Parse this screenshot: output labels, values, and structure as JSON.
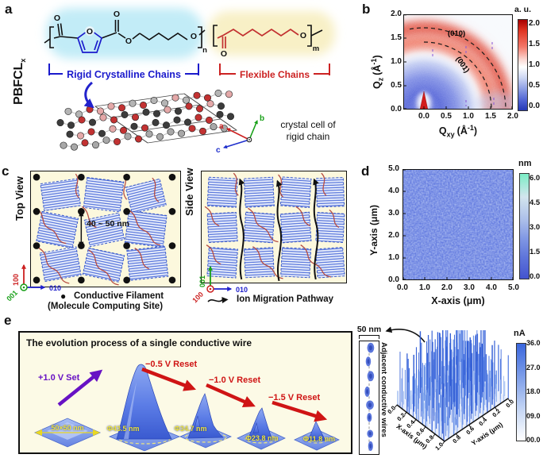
{
  "panels": {
    "a": {
      "label": "a",
      "polymer_name": "PBFCL",
      "polymer_sub": "x",
      "atom_o": "O",
      "sub_n": "n",
      "sub_m": "m",
      "rigid_label": "Rigid Crystalline Chains",
      "flexible_label": "Flexible Chains",
      "crystal_caption_1": "crystal cell of",
      "crystal_caption_2": "rigid chain",
      "axis_a": "a",
      "axis_b": "b",
      "axis_c": "c"
    },
    "b": {
      "label": "b",
      "ylabel_base": "Q",
      "ylabel_sub": "z",
      "xlabel_base": "Q",
      "xlabel_sub": "xy",
      "unit_open": "(Å",
      "unit_sup": "-1",
      "unit_close": ")",
      "y_ticks": [
        "2.0",
        "1.5",
        "1.0",
        "0.5",
        "0.0"
      ],
      "x_ticks": [
        "0.0",
        "0.5",
        "1.0",
        "1.5",
        "2.0"
      ],
      "colorbar_title": "a. u.",
      "colorbar_ticks": [
        "2.0",
        "1.5",
        "1.0",
        "0.5",
        "0.0"
      ],
      "ring_outer": "(010)",
      "ring_inner": "(001)"
    },
    "c": {
      "label": "c",
      "top_view": "Top View",
      "side_view": "Side View",
      "spacing": "40 ~ 50 nm",
      "dir_100": "100",
      "dir_010": "010",
      "dir_001": "001",
      "legend_dot": "●",
      "legend_filament_1": "Conductive Filament",
      "legend_filament_2": "(Molecule Computing Site)",
      "legend_pathway": "Ion Migration Pathway"
    },
    "d": {
      "label": "d",
      "xlabel": "X-axis (μm)",
      "ylabel": "Y-axis (μm)",
      "x_ticks": [
        "0.0",
        "1.0",
        "2.0",
        "3.0",
        "4.0",
        "5.0"
      ],
      "y_ticks": [
        "5.0",
        "4.0",
        "3.0",
        "2.0",
        "1.0",
        "0.0"
      ],
      "colorbar_title": "nm",
      "colorbar_ticks": [
        "6.0",
        "4.5",
        "3.0",
        "1.5",
        "0.0"
      ]
    },
    "e": {
      "label": "e",
      "title": "The evolution process of a single conductive wire",
      "set_label": "+1.0 V Set",
      "reset1": "−0.5 V Reset",
      "reset2": "−1.0 V Reset",
      "reset3": "−1.5 V Reset",
      "area": "50×50 nm",
      "d1": "Φ43.5 nm",
      "d2": "Φ34.7 nm",
      "d3": "Φ23.8 nm",
      "d4": "Φ11.8 nm",
      "scale": "50 nm",
      "strip_caption": "Adjacent conductive wires",
      "p3d_xlabel": "X-axis (μm)",
      "p3d_ylabel": "Y-axis (μm)",
      "p3d_x_ticks": [
        "0.0",
        "0.2",
        "0.4",
        "0.6",
        "0.8",
        "1.0"
      ],
      "p3d_y_ticks": [
        "0.0",
        "0.2",
        "0.4",
        "0.6",
        "0.8"
      ],
      "colorbar_title": "nA",
      "colorbar_ticks": [
        "36.0",
        "27.0",
        "18.0",
        "09.0",
        "00.0"
      ]
    }
  },
  "colors": {
    "rigid_blue": "#1a1acc",
    "flexible_red": "#cc2222",
    "domain_fill_blue": "#4a6ad8",
    "amorphous_red": "#b5473c",
    "set_purple": "#6712c4",
    "reset_red": "#cf1414",
    "highlight_yellow": "#ede23a",
    "panel_cream": "#fcf8dd",
    "afm_blue": "#6078e0"
  }
}
